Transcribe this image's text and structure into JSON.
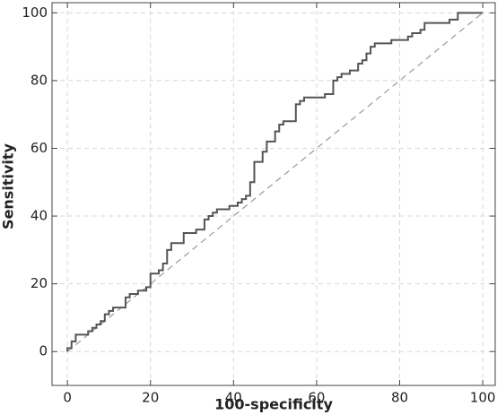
{
  "chart_data": {
    "type": "line",
    "xlabel": "100-specificity",
    "ylabel": "Sensitivity",
    "xlim": [
      -3.7,
      103
    ],
    "ylim": [
      -10,
      103
    ],
    "xticks": [
      0,
      20,
      40,
      60,
      80,
      100
    ],
    "yticks": [
      0,
      20,
      40,
      60,
      80,
      100
    ],
    "grid": true,
    "series": [
      {
        "color": "#555555",
        "dashed": false,
        "x": [
          0,
          0,
          1,
          1,
          2,
          2,
          5,
          5,
          6,
          6,
          7,
          7,
          8,
          8,
          9,
          9,
          10,
          10,
          11,
          11,
          14,
          14,
          15,
          15,
          17,
          17,
          19,
          19,
          20,
          20,
          22,
          22,
          23,
          23,
          24,
          24,
          25,
          25,
          28,
          28,
          31,
          31,
          33,
          33,
          34,
          34,
          35,
          35,
          36,
          36,
          39,
          39,
          41,
          41,
          42,
          42,
          43,
          43,
          44,
          44,
          45,
          45,
          47,
          47,
          48,
          48,
          50,
          50,
          51,
          51,
          52,
          52,
          55,
          55,
          56,
          56,
          57,
          57,
          62,
          62,
          64,
          64,
          65,
          65,
          66,
          66,
          68,
          68,
          70,
          70,
          71,
          71,
          72,
          72,
          73,
          73,
          74,
          74,
          78,
          78,
          82,
          82,
          83,
          83,
          85,
          85,
          86,
          86,
          92,
          92,
          94,
          94,
          100
        ],
        "y": [
          0,
          1,
          1,
          3,
          3,
          5,
          5,
          6,
          6,
          7,
          7,
          8,
          8,
          9,
          9,
          11,
          11,
          12,
          12,
          13,
          13,
          16,
          16,
          17,
          17,
          18,
          18,
          19,
          19,
          23,
          23,
          24,
          24,
          26,
          26,
          30,
          30,
          32,
          32,
          35,
          35,
          36,
          36,
          39,
          39,
          40,
          40,
          41,
          41,
          42,
          42,
          43,
          43,
          44,
          44,
          45,
          45,
          46,
          46,
          50,
          50,
          56,
          56,
          59,
          59,
          62,
          62,
          65,
          65,
          67,
          67,
          68,
          68,
          73,
          73,
          74,
          74,
          75,
          75,
          76,
          76,
          80,
          80,
          81,
          81,
          82,
          82,
          83,
          83,
          85,
          85,
          86,
          86,
          88,
          88,
          90,
          90,
          91,
          91,
          92,
          92,
          93,
          93,
          94,
          94,
          95,
          95,
          97,
          97,
          98,
          98,
          100,
          100
        ]
      },
      {
        "color": "#999999",
        "dashed": true,
        "x": [
          0,
          100
        ],
        "y": [
          0,
          100
        ]
      }
    ]
  }
}
